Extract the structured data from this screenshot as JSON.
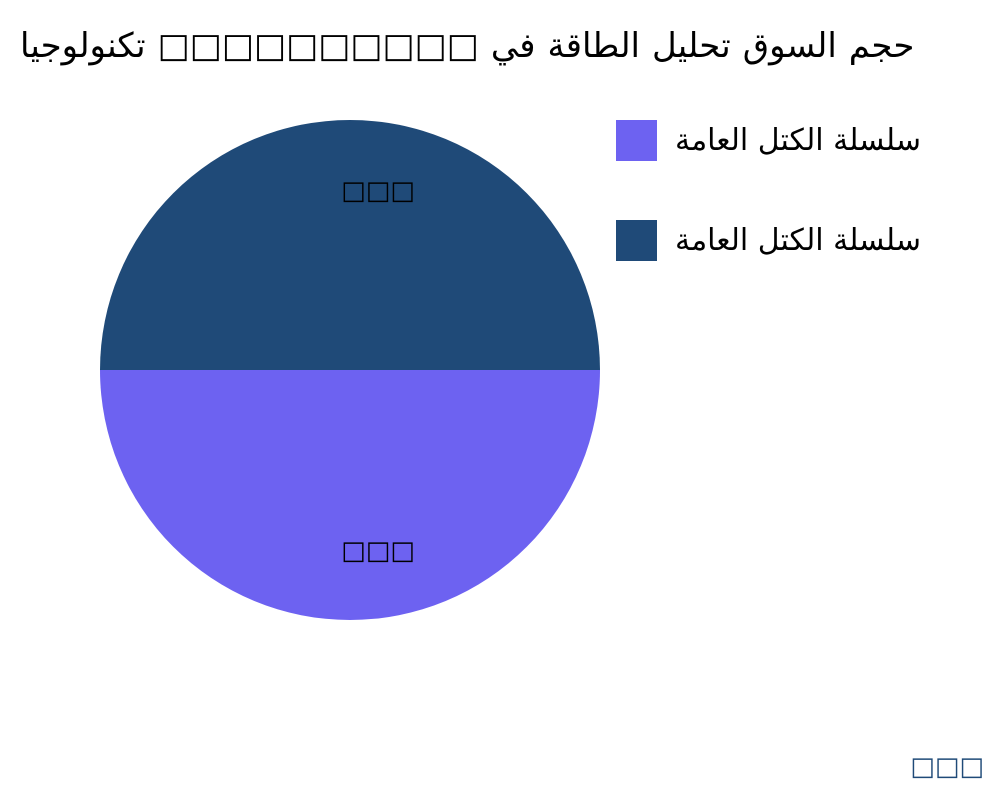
{
  "chart_data": {
    "type": "pie",
    "title_words": [
      "تكنولوجيا",
      "□□□□□□□□□□",
      "في",
      "الطاقة",
      "تحليل",
      "السوق",
      "حجم"
    ],
    "slices": [
      {
        "name": "سلسلة الكتل العامة",
        "value": 50,
        "label": "□□□",
        "color": "#6d62f1"
      },
      {
        "name": "سلسلة الكتل العامة",
        "value": 50,
        "label": "□□□",
        "color": "#1f4a78"
      }
    ],
    "legend_position": "right"
  },
  "footer": {
    "mark": "□□□"
  }
}
